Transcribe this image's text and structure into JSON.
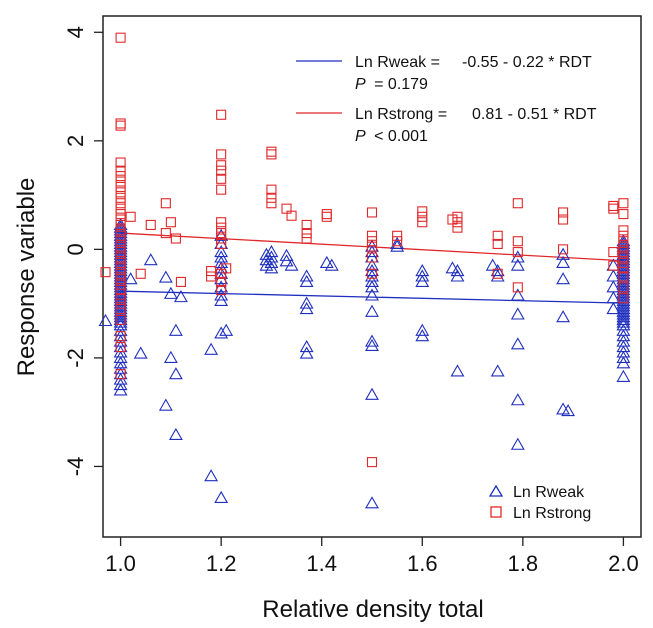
{
  "chart_data": {
    "type": "scatter",
    "xlabel": "Relative density total",
    "ylabel": "Response variable",
    "xlim": [
      0.965,
      2.035
    ],
    "ylim": [
      -5.3,
      4.3
    ],
    "xticks": [
      "1.0",
      "1.2",
      "1.4",
      "1.6",
      "1.8",
      "2.0"
    ],
    "xtick_values": [
      1.0,
      1.2,
      1.4,
      1.6,
      1.8,
      2.0
    ],
    "yticks": [
      "-4",
      "-2",
      "0",
      "2",
      "4"
    ],
    "ytick_values": [
      -4,
      -2,
      0,
      2,
      4
    ],
    "grid": false,
    "regression_legend": {
      "placement": "top-right",
      "entries": [
        {
          "label": "Ln Rweak =",
          "equation": "-0.55 - 0.22  * RDT",
          "p_symbol": "P",
          "p_text": "= 0.179",
          "color": "#1f2fbf"
        },
        {
          "label": "Ln Rstrong =",
          "equation": "0.81 - 0.51  * RDT",
          "p_symbol": "P",
          "p_text": "< 0.001",
          "color": "#e0282a"
        }
      ]
    },
    "point_legend": {
      "placement": "bottom-right",
      "entries": [
        {
          "label": "Ln Rweak",
          "marker": "triangle",
          "color": "#1f2fbf"
        },
        {
          "label": "Ln Rstrong",
          "marker": "square",
          "color": "#e0282a"
        }
      ]
    },
    "series": [
      {
        "name": "Ln Rweak",
        "marker": "triangle",
        "color": "#1f2fbf",
        "fit": {
          "intercept": -0.55,
          "slope": -0.22,
          "x_range": [
            1.0,
            2.0
          ]
        },
        "points": [
          [
            1.0,
            0.45
          ],
          [
            1.0,
            0.4
          ],
          [
            1.0,
            0.35
          ],
          [
            1.0,
            0.3
          ],
          [
            1.0,
            0.25
          ],
          [
            1.0,
            0.2
          ],
          [
            1.0,
            0.15
          ],
          [
            1.0,
            0.1
          ],
          [
            1.0,
            0.05
          ],
          [
            1.0,
            0.0
          ],
          [
            1.0,
            -0.05
          ],
          [
            1.0,
            -0.1
          ],
          [
            1.0,
            -0.15
          ],
          [
            1.0,
            -0.2
          ],
          [
            1.0,
            -0.25
          ],
          [
            1.0,
            -0.3
          ],
          [
            1.0,
            -0.35
          ],
          [
            1.0,
            -0.4
          ],
          [
            1.0,
            -0.45
          ],
          [
            1.0,
            -0.5
          ],
          [
            1.0,
            -0.55
          ],
          [
            1.0,
            -0.6
          ],
          [
            1.0,
            -0.65
          ],
          [
            1.0,
            -0.7
          ],
          [
            1.0,
            -0.75
          ],
          [
            1.0,
            -0.8
          ],
          [
            1.0,
            -0.85
          ],
          [
            1.0,
            -0.9
          ],
          [
            1.0,
            -0.95
          ],
          [
            1.0,
            -1.0
          ],
          [
            1.0,
            -1.05
          ],
          [
            1.0,
            -1.1
          ],
          [
            1.0,
            -1.15
          ],
          [
            1.0,
            -1.2
          ],
          [
            1.0,
            -1.25
          ],
          [
            1.0,
            -1.3
          ],
          [
            1.0,
            -1.35
          ],
          [
            1.0,
            -1.4
          ],
          [
            1.0,
            -1.5
          ],
          [
            1.0,
            -1.6
          ],
          [
            1.0,
            -1.7
          ],
          [
            1.0,
            -1.8
          ],
          [
            1.0,
            -1.9
          ],
          [
            1.0,
            -2.0
          ],
          [
            1.0,
            -2.1
          ],
          [
            1.0,
            -2.2
          ],
          [
            1.0,
            -2.3
          ],
          [
            1.0,
            -2.4
          ],
          [
            1.0,
            -2.5
          ],
          [
            1.0,
            -2.6
          ],
          [
            0.97,
            -1.32
          ],
          [
            1.02,
            -0.55
          ],
          [
            1.04,
            -1.92
          ],
          [
            1.06,
            -0.2
          ],
          [
            1.09,
            -0.52
          ],
          [
            1.09,
            -2.88
          ],
          [
            1.1,
            -0.82
          ],
          [
            1.1,
            -2.0
          ],
          [
            1.11,
            -1.5
          ],
          [
            1.11,
            -2.3
          ],
          [
            1.11,
            -3.42
          ],
          [
            1.12,
            -0.88
          ],
          [
            1.18,
            -1.85
          ],
          [
            1.18,
            -4.18
          ],
          [
            1.2,
            0.25
          ],
          [
            1.2,
            0.1
          ],
          [
            1.2,
            -0.05
          ],
          [
            1.2,
            -0.15
          ],
          [
            1.2,
            -0.25
          ],
          [
            1.2,
            -0.35
          ],
          [
            1.2,
            -0.45
          ],
          [
            1.2,
            -0.55
          ],
          [
            1.2,
            -0.7
          ],
          [
            1.2,
            -0.85
          ],
          [
            1.2,
            -0.95
          ],
          [
            1.2,
            -1.55
          ],
          [
            1.2,
            -4.58
          ],
          [
            1.21,
            -1.5
          ],
          [
            1.29,
            -0.1
          ],
          [
            1.29,
            -0.2
          ],
          [
            1.29,
            -0.3
          ],
          [
            1.3,
            -0.05
          ],
          [
            1.3,
            -0.15
          ],
          [
            1.3,
            -0.25
          ],
          [
            1.3,
            -0.35
          ],
          [
            1.33,
            -0.12
          ],
          [
            1.33,
            -0.22
          ],
          [
            1.34,
            -0.3
          ],
          [
            1.37,
            -0.5
          ],
          [
            1.37,
            -0.6
          ],
          [
            1.37,
            -1.0
          ],
          [
            1.37,
            -1.1
          ],
          [
            1.37,
            -1.8
          ],
          [
            1.37,
            -1.92
          ],
          [
            1.41,
            -0.25
          ],
          [
            1.42,
            -0.3
          ],
          [
            1.5,
            0.05
          ],
          [
            1.5,
            -0.05
          ],
          [
            1.5,
            -0.15
          ],
          [
            1.5,
            -0.3
          ],
          [
            1.5,
            -0.4
          ],
          [
            1.5,
            -0.5
          ],
          [
            1.5,
            -0.6
          ],
          [
            1.5,
            -0.7
          ],
          [
            1.5,
            -0.85
          ],
          [
            1.5,
            -1.15
          ],
          [
            1.5,
            -1.7
          ],
          [
            1.5,
            -1.78
          ],
          [
            1.5,
            -2.68
          ],
          [
            1.5,
            -4.68
          ],
          [
            1.55,
            0.1
          ],
          [
            1.55,
            0.05
          ],
          [
            1.6,
            -0.4
          ],
          [
            1.6,
            -0.5
          ],
          [
            1.6,
            -0.6
          ],
          [
            1.6,
            -1.5
          ],
          [
            1.6,
            -1.6
          ],
          [
            1.66,
            -0.35
          ],
          [
            1.67,
            -0.4
          ],
          [
            1.67,
            -0.5
          ],
          [
            1.67,
            -2.25
          ],
          [
            1.74,
            -0.3
          ],
          [
            1.75,
            -0.4
          ],
          [
            1.75,
            -0.5
          ],
          [
            1.75,
            -2.25
          ],
          [
            1.79,
            -0.15
          ],
          [
            1.79,
            -0.3
          ],
          [
            1.79,
            -0.85
          ],
          [
            1.79,
            -1.2
          ],
          [
            1.79,
            -1.75
          ],
          [
            1.79,
            -2.78
          ],
          [
            1.79,
            -3.6
          ],
          [
            1.88,
            -0.1
          ],
          [
            1.88,
            -0.25
          ],
          [
            1.88,
            -0.55
          ],
          [
            1.88,
            -1.25
          ],
          [
            1.88,
            -2.95
          ],
          [
            1.89,
            -2.98
          ],
          [
            1.98,
            -0.3
          ],
          [
            1.98,
            -0.5
          ],
          [
            1.98,
            -0.7
          ],
          [
            1.98,
            -0.9
          ],
          [
            1.98,
            -1.1
          ],
          [
            2.0,
            0.15
          ],
          [
            2.0,
            0.1
          ],
          [
            2.0,
            0.05
          ],
          [
            2.0,
            0.0
          ],
          [
            2.0,
            -0.05
          ],
          [
            2.0,
            -0.1
          ],
          [
            2.0,
            -0.15
          ],
          [
            2.0,
            -0.2
          ],
          [
            2.0,
            -0.25
          ],
          [
            2.0,
            -0.3
          ],
          [
            2.0,
            -0.35
          ],
          [
            2.0,
            -0.4
          ],
          [
            2.0,
            -0.45
          ],
          [
            2.0,
            -0.5
          ],
          [
            2.0,
            -0.55
          ],
          [
            2.0,
            -0.6
          ],
          [
            2.0,
            -0.65
          ],
          [
            2.0,
            -0.7
          ],
          [
            2.0,
            -0.75
          ],
          [
            2.0,
            -0.8
          ],
          [
            2.0,
            -0.85
          ],
          [
            2.0,
            -0.9
          ],
          [
            2.0,
            -0.95
          ],
          [
            2.0,
            -1.0
          ],
          [
            2.0,
            -1.05
          ],
          [
            2.0,
            -1.1
          ],
          [
            2.0,
            -1.15
          ],
          [
            2.0,
            -1.2
          ],
          [
            2.0,
            -1.25
          ],
          [
            2.0,
            -1.3
          ],
          [
            2.0,
            -1.35
          ],
          [
            2.0,
            -1.4
          ],
          [
            2.0,
            -1.5
          ],
          [
            2.0,
            -1.6
          ],
          [
            2.0,
            -1.7
          ],
          [
            2.0,
            -1.8
          ],
          [
            2.0,
            -1.9
          ],
          [
            2.0,
            -2.0
          ],
          [
            2.0,
            -2.1
          ],
          [
            2.0,
            -2.35
          ]
        ]
      },
      {
        "name": "Ln Rstrong",
        "marker": "square",
        "color": "#e0282a",
        "fit": {
          "intercept": 0.81,
          "slope": -0.51,
          "x_range": [
            1.0,
            2.0
          ]
        },
        "points": [
          [
            1.0,
            3.9
          ],
          [
            1.0,
            2.32
          ],
          [
            1.0,
            2.28
          ],
          [
            1.0,
            1.6
          ],
          [
            1.0,
            1.45
          ],
          [
            1.0,
            1.35
          ],
          [
            1.0,
            1.25
          ],
          [
            1.0,
            1.15
          ],
          [
            1.0,
            1.05
          ],
          [
            1.0,
            0.95
          ],
          [
            1.0,
            0.85
          ],
          [
            1.0,
            0.75
          ],
          [
            1.0,
            0.65
          ],
          [
            1.0,
            0.55
          ],
          [
            1.0,
            0.45
          ],
          [
            1.0,
            0.35
          ],
          [
            1.0,
            0.25
          ],
          [
            1.0,
            0.15
          ],
          [
            1.0,
            0.05
          ],
          [
            1.0,
            -0.05
          ],
          [
            1.0,
            -0.15
          ],
          [
            1.0,
            -0.25
          ],
          [
            1.0,
            -0.35
          ],
          [
            1.0,
            -0.45
          ],
          [
            1.0,
            -0.55
          ],
          [
            1.0,
            -0.65
          ],
          [
            1.0,
            -0.75
          ],
          [
            1.0,
            -0.9
          ],
          [
            1.0,
            -1.0
          ],
          [
            1.0,
            -1.1
          ],
          [
            1.0,
            -1.3
          ],
          [
            1.0,
            -1.6
          ],
          [
            1.0,
            -1.8
          ],
          [
            1.0,
            -2.3
          ],
          [
            0.97,
            -0.42
          ],
          [
            1.02,
            0.6
          ],
          [
            1.04,
            -0.45
          ],
          [
            1.06,
            0.45
          ],
          [
            1.09,
            0.85
          ],
          [
            1.09,
            0.3
          ],
          [
            1.1,
            0.5
          ],
          [
            1.11,
            0.2
          ],
          [
            1.12,
            -0.6
          ],
          [
            1.18,
            -0.4
          ],
          [
            1.18,
            -0.5
          ],
          [
            1.2,
            2.48
          ],
          [
            1.2,
            1.75
          ],
          [
            1.2,
            1.55
          ],
          [
            1.2,
            1.45
          ],
          [
            1.2,
            1.3
          ],
          [
            1.2,
            1.1
          ],
          [
            1.2,
            0.5
          ],
          [
            1.2,
            0.4
          ],
          [
            1.2,
            0.3
          ],
          [
            1.2,
            0.2
          ],
          [
            1.2,
            0.1
          ],
          [
            1.2,
            -0.45
          ],
          [
            1.2,
            -0.6
          ],
          [
            1.2,
            -0.75
          ],
          [
            1.21,
            -0.35
          ],
          [
            1.3,
            1.8
          ],
          [
            1.3,
            1.75
          ],
          [
            1.3,
            1.1
          ],
          [
            1.3,
            0.95
          ],
          [
            1.3,
            0.85
          ],
          [
            1.33,
            0.75
          ],
          [
            1.34,
            0.62
          ],
          [
            1.37,
            0.45
          ],
          [
            1.37,
            0.3
          ],
          [
            1.37,
            0.2
          ],
          [
            1.41,
            0.65
          ],
          [
            1.41,
            0.6
          ],
          [
            1.5,
            0.68
          ],
          [
            1.5,
            0.25
          ],
          [
            1.5,
            0.15
          ],
          [
            1.5,
            0.05
          ],
          [
            1.5,
            -0.15
          ],
          [
            1.5,
            -0.45
          ],
          [
            1.5,
            -3.92
          ],
          [
            1.55,
            0.25
          ],
          [
            1.55,
            0.15
          ],
          [
            1.6,
            0.7
          ],
          [
            1.6,
            0.6
          ],
          [
            1.6,
            0.5
          ],
          [
            1.66,
            0.55
          ],
          [
            1.67,
            0.6
          ],
          [
            1.67,
            0.5
          ],
          [
            1.67,
            0.4
          ],
          [
            1.75,
            0.25
          ],
          [
            1.75,
            0.1
          ],
          [
            1.75,
            -0.45
          ],
          [
            1.79,
            0.85
          ],
          [
            1.79,
            0.15
          ],
          [
            1.79,
            -0.05
          ],
          [
            1.79,
            -0.7
          ],
          [
            1.88,
            0.68
          ],
          [
            1.88,
            0.55
          ],
          [
            1.88,
            0.0
          ],
          [
            1.98,
            0.8
          ],
          [
            1.98,
            0.75
          ],
          [
            1.98,
            -0.05
          ],
          [
            1.98,
            -0.3
          ],
          [
            2.0,
            0.85
          ],
          [
            2.0,
            0.65
          ],
          [
            2.0,
            0.35
          ],
          [
            2.0,
            0.25
          ],
          [
            2.0,
            0.15
          ],
          [
            2.0,
            0.05
          ],
          [
            2.0,
            -0.05
          ],
          [
            2.0,
            -0.15
          ],
          [
            2.0,
            -0.25
          ],
          [
            2.0,
            -0.35
          ],
          [
            2.0,
            -0.5
          ],
          [
            2.0,
            -0.7
          ],
          [
            2.0,
            -0.9
          ]
        ]
      }
    ]
  }
}
